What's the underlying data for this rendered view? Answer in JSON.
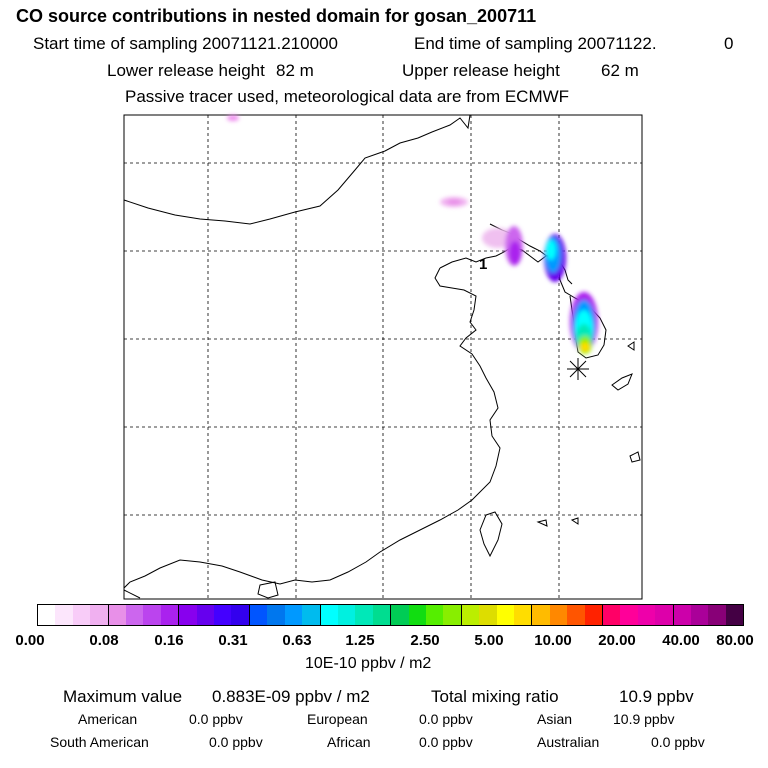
{
  "header": {
    "title": "CO  source contributions in nested domain for gosan_200711",
    "start_label": "Start time of sampling 20071121.210000",
    "end_label": "End time of sampling 20071122.",
    "end_value": "0",
    "lower_label": "Lower release height",
    "lower_value": "82 m",
    "upper_label": "Upper release height",
    "upper_value": "62 m",
    "tracer_note": "Passive tracer used, meteorological data are from ECMWF"
  },
  "map": {
    "marker_label": "1"
  },
  "colorbar": {
    "colors": [
      "#ffffff",
      "#fce6fc",
      "#f8ccf8",
      "#f0b0f0",
      "#e890e8",
      "#cc66ee",
      "#bb44ee",
      "#aa22ee",
      "#8800ee",
      "#6600ee",
      "#4400ff",
      "#3300ee",
      "#0055ff",
      "#0077ee",
      "#0099ff",
      "#00bbee",
      "#00ffff",
      "#00f0e0",
      "#00e8b8",
      "#00dd90",
      "#00cc55",
      "#11dd11",
      "#55ee00",
      "#88ee00",
      "#bbee00",
      "#dddd00",
      "#ffff00",
      "#ffdd00",
      "#ffbb00",
      "#ff8800",
      "#ff5500",
      "#ff2200",
      "#ff0066",
      "#ff0099",
      "#ee00aa",
      "#dd00aa",
      "#cc00aa",
      "#aa0099",
      "#880077",
      "#440044"
    ],
    "ticks": [
      "0.00",
      "0.08",
      "0.16",
      "0.31",
      "0.63",
      "1.25",
      "2.50",
      "5.00",
      "10.00",
      "20.00",
      "40.00",
      "80.00"
    ],
    "unit": "10E-10 ppbv / m2"
  },
  "summary": {
    "max_label": "Maximum value",
    "max_value": "0.883E-09 ppbv / m2",
    "total_label": "Total mixing ratio",
    "total_value": "10.9 ppbv",
    "american_label": "American",
    "american_value": "0.0 ppbv",
    "european_label": "European",
    "european_value": "0.0 ppbv",
    "asian_label": "Asian",
    "asian_value": "10.9 ppbv",
    "south_american_label": "South American",
    "south_american_value": "0.0 ppbv",
    "african_label": "African",
    "african_value": "0.0 ppbv",
    "australian_label": "Australian",
    "australian_value": "0.0 ppbv"
  }
}
